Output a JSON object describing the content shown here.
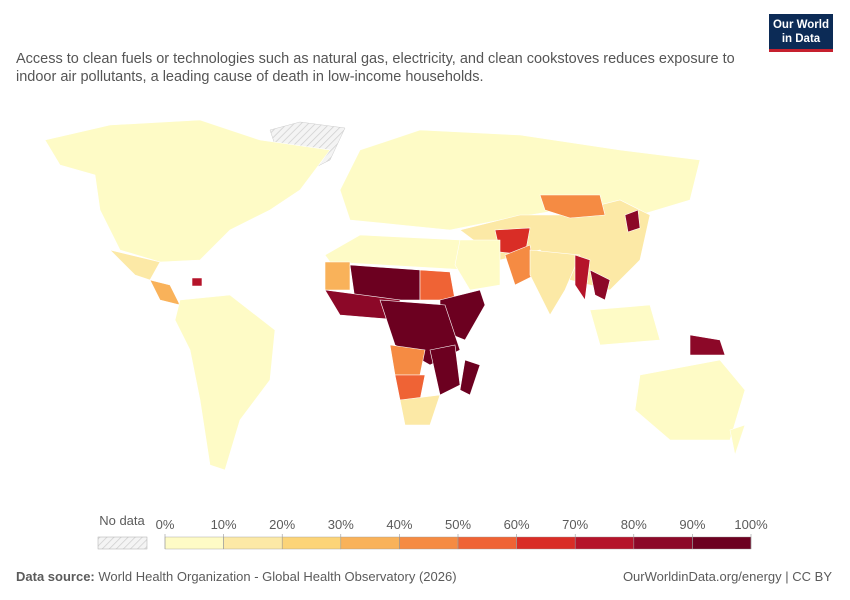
{
  "chart_data": {
    "type": "choropleth",
    "subtitle": "Access to clean fuels or technologies such as natural gas, electricity, and clean cookstoves reduces exposure to indoor air pollutants, a leading cause of death in low-income households.",
    "logo": [
      "Our World",
      "in Data"
    ],
    "no_data_label": "No data",
    "ticks": [
      {
        "value": 0,
        "label": "0%"
      },
      {
        "value": 10,
        "label": "10%"
      },
      {
        "value": 20,
        "label": "20%"
      },
      {
        "value": 30,
        "label": "30%"
      },
      {
        "value": 40,
        "label": "40%"
      },
      {
        "value": 50,
        "label": "50%"
      },
      {
        "value": 60,
        "label": "60%"
      },
      {
        "value": 70,
        "label": "70%"
      },
      {
        "value": 80,
        "label": "80%"
      },
      {
        "value": 90,
        "label": "90%"
      },
      {
        "value": 100,
        "label": "100%"
      }
    ],
    "colors": [
      "#fefbc6",
      "#fce9a6",
      "#fcd478",
      "#f9b25a",
      "#f58b43",
      "#ef6335",
      "#d92d26",
      "#b5142a",
      "#8c0828",
      "#6c0020"
    ],
    "values": [
      1,
      15,
      40,
      80,
      5,
      1,
      20,
      45,
      85,
      70,
      45,
      20,
      75,
      85,
      10,
      90,
      1,
      1,
      35,
      95,
      55,
      90,
      92,
      97,
      45,
      55,
      93,
      12,
      98,
      1,
      1
    ],
    "source_label": "Data source:",
    "source": "World Health Organization - Global Health Observatory (2026)",
    "footer_right": "OurWorldinData.org/energy | CC BY"
  }
}
